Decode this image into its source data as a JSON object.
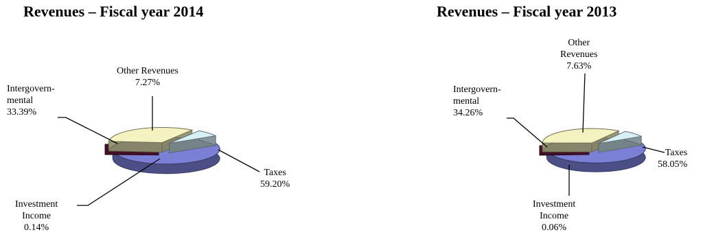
{
  "chart_data": [
    {
      "type": "pie",
      "title": "Revenues – Fiscal year 2014",
      "slices": [
        {
          "label_lines": [
            "Taxes"
          ],
          "value_label": "59.20%",
          "value": 59.2,
          "color": "#7b7fd6"
        },
        {
          "label_lines": [
            "Investment",
            "Income"
          ],
          "value_label": "0.14%",
          "value": 0.14,
          "color": "#7a1f45"
        },
        {
          "label_lines": [
            "Intergovern-",
            "mental"
          ],
          "value_label": "33.39%",
          "value": 33.39,
          "color": "#f4f2c0"
        },
        {
          "label_lines": [
            "Other Revenues"
          ],
          "value_label": "7.27%",
          "value": 7.27,
          "color": "#d6f0f6"
        }
      ]
    },
    {
      "type": "pie",
      "title": "Revenues – Fiscal year 2013",
      "slices": [
        {
          "label_lines": [
            "Taxes"
          ],
          "value_label": "58.05%",
          "value": 58.05,
          "color": "#7b7fd6"
        },
        {
          "label_lines": [
            "Investment",
            "Income"
          ],
          "value_label": "0.06%",
          "value": 0.06,
          "color": "#7a1f45"
        },
        {
          "label_lines": [
            "Intergovern-",
            "mental"
          ],
          "value_label": "34.26%",
          "value": 34.26,
          "color": "#f4f2c0"
        },
        {
          "label_lines": [
            "Other",
            "Revenues"
          ],
          "value_label": "7.63%",
          "value": 7.63,
          "color": "#d6f0f6"
        }
      ]
    }
  ]
}
